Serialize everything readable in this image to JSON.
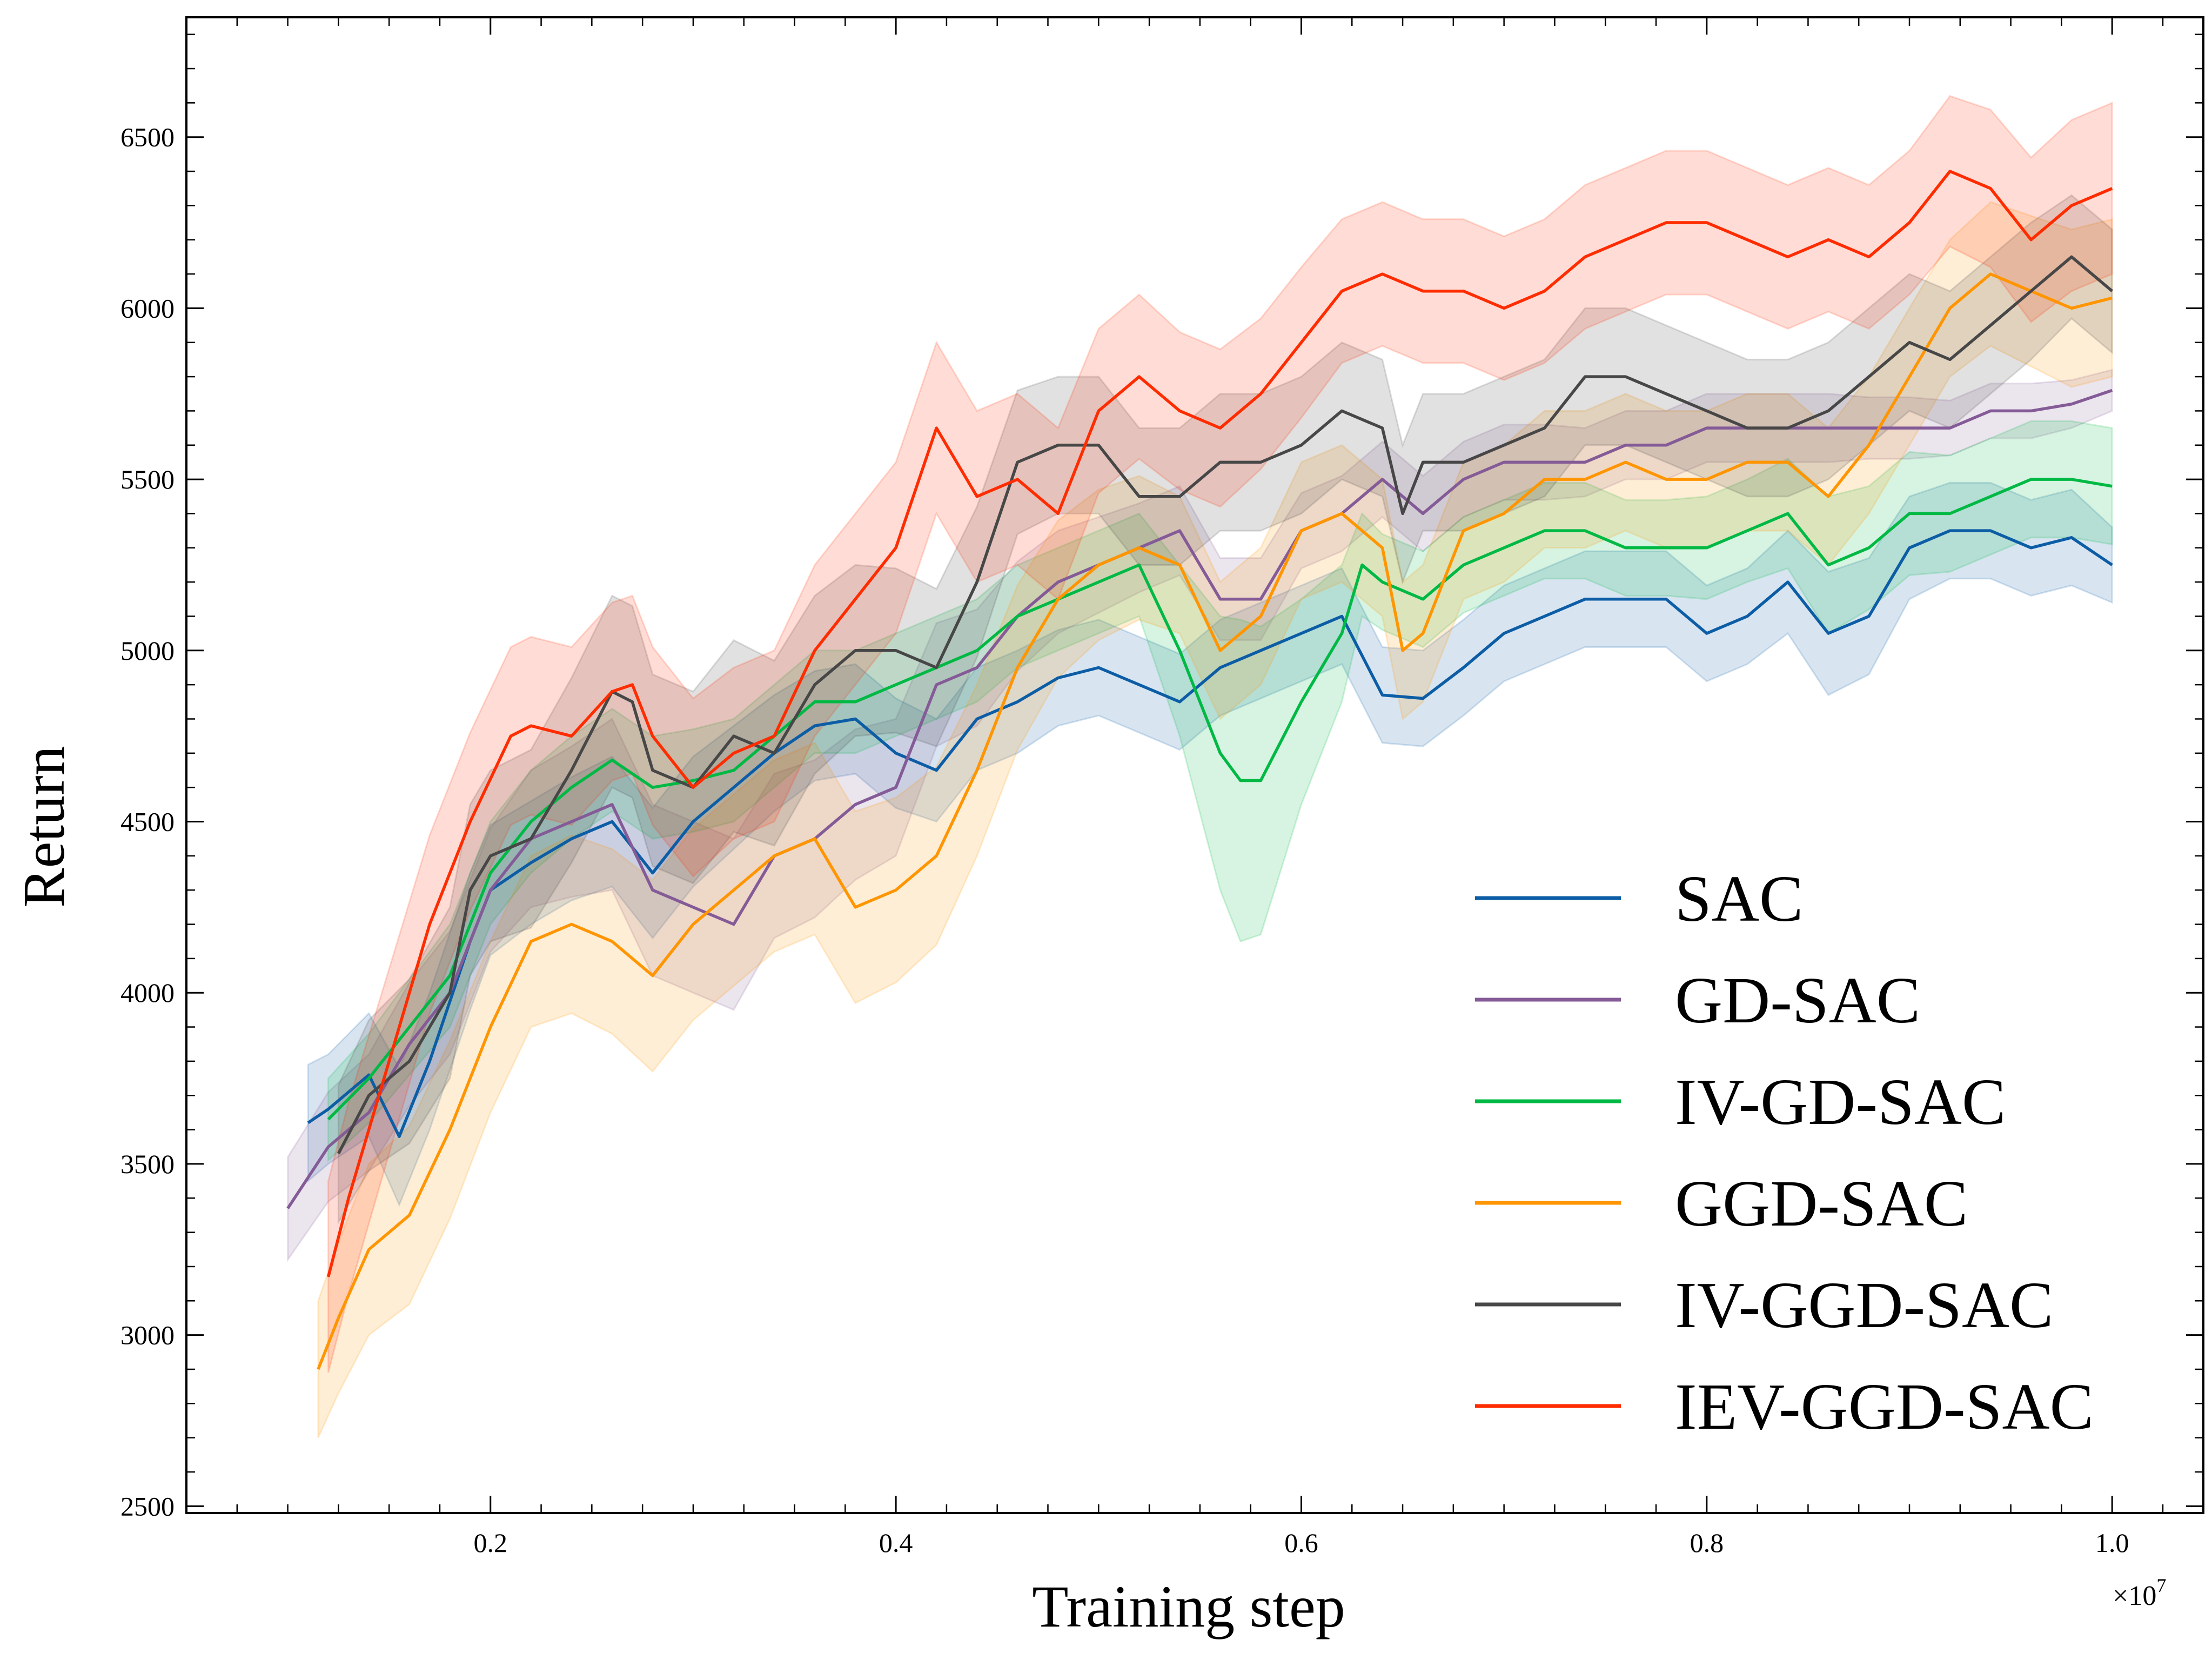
{
  "chart_data": {
    "type": "line",
    "title": "",
    "xlabel": "Training step",
    "ylabel": "Return",
    "x_exponent_label": "×10",
    "x_exponent_power": "7",
    "xlim": [
      0.05,
      1.045
    ],
    "ylim": [
      2480,
      6850
    ],
    "x_ticks": [
      0.2,
      0.4,
      0.6,
      0.8,
      1.0
    ],
    "x_tick_labels": [
      "0.2",
      "0.4",
      "0.6",
      "0.8",
      "1.0"
    ],
    "y_ticks": [
      2500,
      3000,
      3500,
      4000,
      4500,
      5000,
      5500,
      6000,
      6500
    ],
    "y_tick_labels": [
      "2500",
      "3000",
      "3500",
      "4000",
      "4500",
      "5000",
      "5500",
      "6000",
      "6500"
    ],
    "legend_position": "lower-right",
    "grid": false,
    "series": [
      {
        "name": "SAC",
        "color": "#0C5DA5",
        "x": [
          0.11,
          0.12,
          0.14,
          0.155,
          0.17,
          0.19,
          0.2,
          0.22,
          0.24,
          0.26,
          0.28,
          0.3,
          0.32,
          0.34,
          0.36,
          0.38,
          0.4,
          0.42,
          0.44,
          0.46,
          0.48,
          0.5,
          0.52,
          0.54,
          0.56,
          0.58,
          0.6,
          0.62,
          0.64,
          0.66,
          0.68,
          0.7,
          0.72,
          0.74,
          0.76,
          0.78,
          0.8,
          0.82,
          0.84,
          0.86,
          0.88,
          0.9,
          0.92,
          0.94,
          0.96,
          0.98,
          1.0
        ],
        "y": [
          3620,
          3660,
          3760,
          3580,
          3800,
          4150,
          4300,
          4380,
          4450,
          4500,
          4350,
          4500,
          4600,
          4700,
          4780,
          4800,
          4700,
          4650,
          4800,
          4850,
          4920,
          4950,
          4900,
          4850,
          4950,
          5000,
          5050,
          5100,
          4870,
          4860,
          4950,
          5050,
          5100,
          5150,
          5150,
          5150,
          5050,
          5100,
          5200,
          5050,
          5100,
          5300,
          5350,
          5350,
          5300,
          5330,
          5250
        ],
        "band": [
          170,
          160,
          180,
          200,
          200,
          200,
          190,
          180,
          180,
          190,
          190,
          190,
          180,
          170,
          160,
          160,
          160,
          150,
          150,
          150,
          140,
          140,
          140,
          140,
          140,
          140,
          140,
          140,
          140,
          140,
          140,
          140,
          140,
          140,
          140,
          140,
          140,
          140,
          150,
          180,
          170,
          150,
          140,
          140,
          140,
          140,
          110
        ]
      },
      {
        "name": "GD-SAC",
        "color": "#845B97",
        "x": [
          0.1,
          0.12,
          0.14,
          0.16,
          0.18,
          0.2,
          0.22,
          0.24,
          0.26,
          0.28,
          0.3,
          0.32,
          0.34,
          0.36,
          0.38,
          0.4,
          0.42,
          0.44,
          0.46,
          0.48,
          0.5,
          0.52,
          0.54,
          0.56,
          0.58,
          0.6,
          0.62,
          0.64,
          0.66,
          0.68,
          0.7,
          0.72,
          0.74,
          0.76,
          0.78,
          0.8,
          0.82,
          0.84,
          0.86,
          0.88,
          0.9,
          0.92,
          0.94,
          0.96,
          0.98,
          1.0
        ],
        "y": [
          3370,
          3550,
          3650,
          3850,
          4000,
          4300,
          4450,
          4500,
          4550,
          4300,
          4250,
          4200,
          4400,
          4450,
          4550,
          4600,
          4900,
          4950,
          5100,
          5200,
          5250,
          5300,
          5350,
          5150,
          5150,
          5350,
          5400,
          5500,
          5400,
          5500,
          5550,
          5550,
          5550,
          5600,
          5600,
          5650,
          5650,
          5650,
          5650,
          5650,
          5650,
          5650,
          5700,
          5700,
          5720,
          5760
        ],
        "band": [
          150,
          160,
          170,
          180,
          180,
          180,
          200,
          220,
          250,
          250,
          250,
          250,
          240,
          230,
          220,
          200,
          180,
          170,
          160,
          150,
          140,
          130,
          130,
          120,
          120,
          110,
          110,
          110,
          110,
          110,
          110,
          110,
          100,
          100,
          100,
          100,
          100,
          100,
          100,
          90,
          90,
          80,
          80,
          80,
          70,
          60
        ]
      },
      {
        "name": "IV-GD-SAC",
        "color": "#00B945",
        "x": [
          0.12,
          0.14,
          0.16,
          0.18,
          0.2,
          0.22,
          0.24,
          0.26,
          0.28,
          0.3,
          0.32,
          0.34,
          0.36,
          0.38,
          0.4,
          0.42,
          0.44,
          0.46,
          0.48,
          0.5,
          0.52,
          0.54,
          0.56,
          0.57,
          0.58,
          0.6,
          0.62,
          0.63,
          0.64,
          0.66,
          0.68,
          0.7,
          0.72,
          0.74,
          0.76,
          0.78,
          0.8,
          0.82,
          0.84,
          0.86,
          0.88,
          0.9,
          0.92,
          0.94,
          0.96,
          0.98,
          1.0
        ],
        "y": [
          3630,
          3750,
          3900,
          4050,
          4350,
          4500,
          4600,
          4680,
          4600,
          4620,
          4650,
          4750,
          4850,
          4850,
          4900,
          4950,
          5000,
          5100,
          5150,
          5200,
          5250,
          5000,
          4700,
          4620,
          4620,
          4850,
          5050,
          5250,
          5200,
          5150,
          5250,
          5300,
          5350,
          5350,
          5300,
          5300,
          5300,
          5350,
          5400,
          5250,
          5300,
          5400,
          5400,
          5450,
          5500,
          5500,
          5480
        ],
        "band": [
          120,
          130,
          140,
          150,
          150,
          150,
          150,
          150,
          150,
          150,
          150,
          150,
          150,
          150,
          150,
          150,
          150,
          150,
          150,
          150,
          150,
          250,
          400,
          470,
          450,
          300,
          200,
          150,
          140,
          140,
          140,
          140,
          140,
          140,
          140,
          140,
          150,
          150,
          160,
          200,
          180,
          180,
          170,
          170,
          170,
          170,
          170
        ]
      },
      {
        "name": "GGD-SAC",
        "color": "#FF9500",
        "x": [
          0.115,
          0.125,
          0.14,
          0.16,
          0.18,
          0.2,
          0.22,
          0.24,
          0.26,
          0.28,
          0.3,
          0.32,
          0.34,
          0.36,
          0.38,
          0.4,
          0.42,
          0.44,
          0.46,
          0.48,
          0.5,
          0.52,
          0.54,
          0.56,
          0.58,
          0.6,
          0.62,
          0.64,
          0.65,
          0.66,
          0.68,
          0.7,
          0.72,
          0.74,
          0.76,
          0.78,
          0.8,
          0.82,
          0.84,
          0.86,
          0.88,
          0.9,
          0.92,
          0.94,
          0.96,
          0.98,
          1.0
        ],
        "y": [
          2900,
          3050,
          3250,
          3350,
          3600,
          3900,
          4150,
          4200,
          4150,
          4050,
          4200,
          4300,
          4400,
          4450,
          4250,
          4300,
          4400,
          4650,
          4950,
          5150,
          5250,
          5300,
          5250,
          5000,
          5100,
          5350,
          5400,
          5300,
          5000,
          5050,
          5350,
          5400,
          5500,
          5500,
          5550,
          5500,
          5500,
          5550,
          5550,
          5450,
          5600,
          5800,
          6000,
          6100,
          6050,
          6000,
          6030
        ],
        "band": [
          200,
          220,
          250,
          260,
          260,
          250,
          250,
          260,
          270,
          280,
          280,
          280,
          280,
          280,
          280,
          270,
          260,
          250,
          240,
          230,
          220,
          210,
          200,
          200,
          200,
          200,
          200,
          200,
          200,
          200,
          200,
          200,
          200,
          200,
          200,
          200,
          200,
          200,
          200,
          200,
          200,
          200,
          200,
          210,
          220,
          230,
          230
        ]
      },
      {
        "name": "IV-GGD-SAC",
        "color": "#474747",
        "x": [
          0.125,
          0.14,
          0.16,
          0.18,
          0.19,
          0.2,
          0.22,
          0.24,
          0.26,
          0.27,
          0.28,
          0.3,
          0.32,
          0.34,
          0.36,
          0.38,
          0.4,
          0.42,
          0.44,
          0.46,
          0.48,
          0.5,
          0.52,
          0.54,
          0.56,
          0.58,
          0.6,
          0.62,
          0.64,
          0.65,
          0.66,
          0.68,
          0.7,
          0.72,
          0.74,
          0.76,
          0.78,
          0.8,
          0.82,
          0.84,
          0.86,
          0.88,
          0.9,
          0.92,
          0.94,
          0.96,
          0.98,
          1.0
        ],
        "y": [
          3530,
          3700,
          3800,
          4000,
          4300,
          4400,
          4450,
          4650,
          4880,
          4850,
          4650,
          4600,
          4750,
          4700,
          4900,
          5000,
          5000,
          4950,
          5200,
          5550,
          5600,
          5600,
          5450,
          5450,
          5550,
          5550,
          5600,
          5700,
          5650,
          5400,
          5550,
          5550,
          5600,
          5650,
          5800,
          5800,
          5750,
          5700,
          5650,
          5650,
          5700,
          5800,
          5900,
          5850,
          5950,
          6050,
          6150,
          6050
        ],
        "band": [
          200,
          220,
          240,
          250,
          250,
          250,
          260,
          270,
          280,
          280,
          280,
          280,
          280,
          270,
          260,
          250,
          240,
          230,
          220,
          210,
          200,
          200,
          200,
          200,
          200,
          200,
          200,
          200,
          200,
          200,
          200,
          200,
          200,
          200,
          200,
          200,
          200,
          200,
          200,
          200,
          200,
          200,
          200,
          200,
          200,
          200,
          180,
          180
        ]
      },
      {
        "name": "IEV-GGD-SAC",
        "color": "#FF2C00",
        "x": [
          0.12,
          0.13,
          0.15,
          0.17,
          0.19,
          0.21,
          0.22,
          0.24,
          0.26,
          0.27,
          0.28,
          0.3,
          0.32,
          0.34,
          0.36,
          0.38,
          0.4,
          0.42,
          0.44,
          0.46,
          0.48,
          0.5,
          0.52,
          0.54,
          0.56,
          0.58,
          0.6,
          0.62,
          0.64,
          0.66,
          0.68,
          0.7,
          0.72,
          0.74,
          0.76,
          0.78,
          0.8,
          0.82,
          0.84,
          0.86,
          0.88,
          0.9,
          0.92,
          0.94,
          0.96,
          0.98,
          1.0
        ],
        "y": [
          3170,
          3400,
          3800,
          4200,
          4500,
          4750,
          4780,
          4750,
          4880,
          4900,
          4750,
          4600,
          4700,
          4750,
          5000,
          5150,
          5300,
          5650,
          5450,
          5500,
          5400,
          5700,
          5800,
          5700,
          5650,
          5750,
          5900,
          6050,
          6100,
          6050,
          6050,
          6000,
          6050,
          6150,
          6200,
          6250,
          6250,
          6200,
          6150,
          6200,
          6150,
          6250,
          6400,
          6350,
          6200,
          6300,
          6350
        ],
        "band": [
          280,
          280,
          270,
          260,
          260,
          260,
          260,
          260,
          260,
          260,
          260,
          260,
          250,
          250,
          250,
          250,
          250,
          250,
          250,
          250,
          250,
          240,
          240,
          230,
          230,
          220,
          220,
          210,
          210,
          210,
          210,
          210,
          210,
          210,
          210,
          210,
          210,
          210,
          210,
          210,
          210,
          210,
          220,
          230,
          240,
          250,
          250
        ]
      }
    ]
  }
}
